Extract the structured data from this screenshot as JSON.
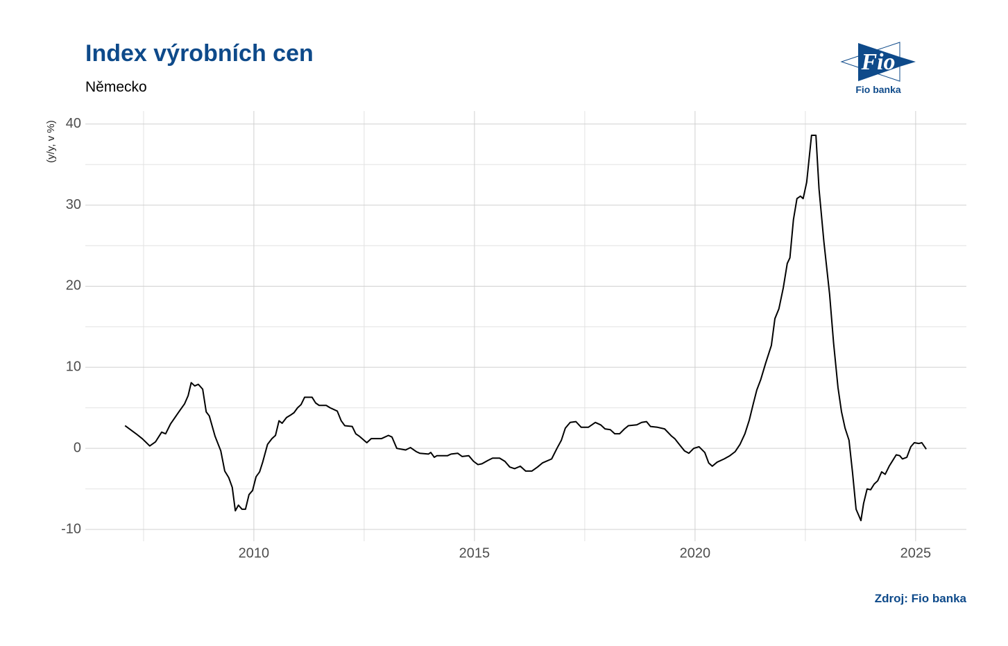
{
  "chart_data": {
    "type": "line",
    "title": "Index výrobních cen",
    "subtitle": "Německo",
    "y_label": "(y/y, v %)",
    "source": "Zdroj: Fio banka",
    "logo": {
      "mark": "Fio",
      "name": "Fio banka"
    },
    "color": "#000000",
    "grid": true,
    "xlim": [
      2006.18,
      2026.15
    ],
    "ylim": [
      -11.45,
      41.6
    ],
    "xticks": [
      2010,
      2015,
      2020,
      2025
    ],
    "xticks_minor": [
      2007.5,
      2012.5,
      2017.5,
      2022.5
    ],
    "yticks": [
      -10,
      0,
      10,
      20,
      30,
      40
    ],
    "yticks_minor": [
      -5,
      5,
      15,
      25,
      35
    ],
    "x": [
      2007.08,
      2007.33,
      2007.47,
      2007.64,
      2007.77,
      2007.91,
      2008.0,
      2008.11,
      2008.3,
      2008.43,
      2008.51,
      2008.58,
      2008.66,
      2008.74,
      2008.84,
      2008.92,
      2008.99,
      2009.12,
      2009.25,
      2009.34,
      2009.43,
      2009.51,
      2009.58,
      2009.65,
      2009.73,
      2009.81,
      2009.89,
      2009.97,
      2010.05,
      2010.13,
      2010.2,
      2010.31,
      2010.41,
      2010.49,
      2010.57,
      2010.64,
      2010.74,
      2010.83,
      2010.91,
      2010.99,
      2011.07,
      2011.15,
      2011.32,
      2011.4,
      2011.48,
      2011.64,
      2011.73,
      2011.89,
      2011.98,
      2012.06,
      2012.23,
      2012.31,
      2012.39,
      2012.56,
      2012.66,
      2012.89,
      2013.05,
      2013.13,
      2013.24,
      2013.44,
      2013.55,
      2013.68,
      2013.76,
      2013.96,
      2014.01,
      2014.09,
      2014.15,
      2014.39,
      2014.47,
      2014.62,
      2014.72,
      2014.87,
      2014.98,
      2015.08,
      2015.17,
      2015.3,
      2015.41,
      2015.57,
      2015.69,
      2015.8,
      2015.91,
      2016.04,
      2016.16,
      2016.3,
      2016.43,
      2016.54,
      2016.75,
      2016.87,
      2016.97,
      2017.06,
      2017.17,
      2017.3,
      2017.42,
      2017.58,
      2017.74,
      2017.86,
      2017.96,
      2018.08,
      2018.18,
      2018.29,
      2018.4,
      2018.49,
      2018.68,
      2018.79,
      2018.9,
      2018.99,
      2019.15,
      2019.31,
      2019.47,
      2019.54,
      2019.67,
      2019.76,
      2019.86,
      2019.97,
      2020.09,
      2020.22,
      2020.31,
      2020.39,
      2020.5,
      2020.66,
      2020.79,
      2020.91,
      2021.02,
      2021.13,
      2021.23,
      2021.32,
      2021.4,
      2021.49,
      2021.6,
      2021.73,
      2021.81,
      2021.9,
      2022.0,
      2022.09,
      2022.15,
      2022.23,
      2022.31,
      2022.39,
      2022.45,
      2022.53,
      2022.64,
      2022.74,
      2022.81,
      2022.92,
      2023.05,
      2023.14,
      2023.24,
      2023.32,
      2023.4,
      2023.49,
      2023.57,
      2023.65,
      2023.76,
      2023.82,
      2023.9,
      2023.98,
      2024.06,
      2024.14,
      2024.23,
      2024.31,
      2024.4,
      2024.48,
      2024.56,
      2024.64,
      2024.7,
      2024.8,
      2024.89,
      2024.97,
      2025.07,
      2025.14,
      2025.24
    ],
    "values": [
      2.8,
      1.8,
      1.2,
      0.3,
      0.8,
      2.0,
      1.8,
      3.0,
      4.5,
      5.5,
      6.5,
      8.1,
      7.7,
      7.9,
      7.3,
      4.5,
      4.0,
      1.5,
      -0.3,
      -2.8,
      -3.6,
      -4.8,
      -7.7,
      -7.0,
      -7.5,
      -7.5,
      -5.7,
      -5.2,
      -3.5,
      -2.9,
      -1.7,
      0.5,
      1.2,
      1.6,
      3.4,
      3.1,
      3.8,
      4.1,
      4.4,
      5.0,
      5.4,
      6.3,
      6.3,
      5.6,
      5.3,
      5.3,
      5.0,
      4.6,
      3.4,
      2.8,
      2.7,
      1.8,
      1.5,
      0.7,
      1.2,
      1.2,
      1.6,
      1.4,
      0.0,
      -0.2,
      0.1,
      -0.4,
      -0.6,
      -0.7,
      -0.5,
      -1.1,
      -0.9,
      -0.9,
      -0.7,
      -0.6,
      -1.0,
      -0.9,
      -1.6,
      -2.0,
      -1.9,
      -1.5,
      -1.2,
      -1.2,
      -1.6,
      -2.3,
      -2.5,
      -2.2,
      -2.8,
      -2.8,
      -2.3,
      -1.8,
      -1.3,
      0.0,
      1.0,
      2.5,
      3.2,
      3.3,
      2.6,
      2.6,
      3.2,
      2.9,
      2.4,
      2.3,
      1.8,
      1.8,
      2.4,
      2.8,
      2.9,
      3.2,
      3.3,
      2.7,
      2.6,
      2.4,
      1.5,
      1.2,
      0.3,
      -0.3,
      -0.6,
      0.0,
      0.2,
      -0.5,
      -1.8,
      -2.2,
      -1.7,
      -1.3,
      -0.9,
      -0.4,
      0.5,
      1.8,
      3.5,
      5.5,
      7.2,
      8.5,
      10.5,
      12.7,
      16.0,
      17.2,
      19.8,
      22.8,
      23.5,
      28.2,
      30.8,
      31.1,
      30.8,
      32.8,
      38.6,
      38.6,
      32.0,
      25.5,
      19.0,
      13.0,
      7.5,
      4.5,
      2.5,
      1.0,
      -3.0,
      -7.5,
      -8.9,
      -6.8,
      -5.0,
      -5.1,
      -4.4,
      -4.0,
      -2.9,
      -3.2,
      -2.2,
      -1.5,
      -0.8,
      -0.9,
      -1.3,
      -1.1,
      0.2,
      0.7,
      0.6,
      0.7,
      -0.1
    ]
  }
}
